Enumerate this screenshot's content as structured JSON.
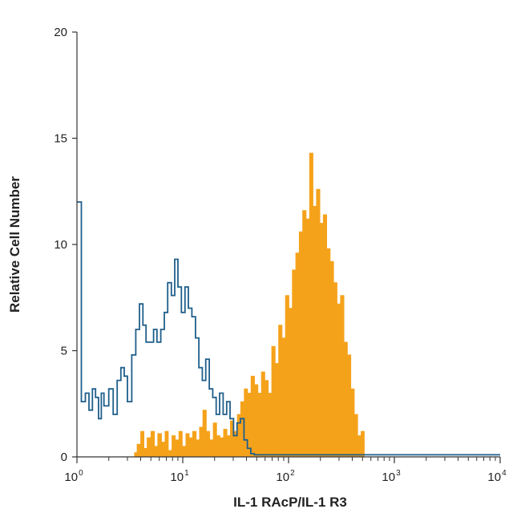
{
  "chart_data": {
    "type": "histogram",
    "title": "",
    "xlabel": "IL-1 RAcP/IL-1 R3",
    "ylabel": "Relative Cell Number",
    "xscale": "log",
    "xlim": [
      1,
      10000
    ],
    "ylim": [
      0,
      20
    ],
    "grid": false,
    "y_ticks": [
      0,
      5,
      10,
      15,
      20
    ],
    "x_ticks": [
      {
        "base": "10",
        "exp": "0"
      },
      {
        "base": "10",
        "exp": "1"
      },
      {
        "base": "10",
        "exp": "2"
      },
      {
        "base": "10",
        "exp": "3"
      },
      {
        "base": "10",
        "exp": "4"
      }
    ],
    "series": [
      {
        "style": "outline",
        "color": "#1f5f8b",
        "x": [
          1.0,
          1.1,
          1.2,
          1.3,
          1.4,
          1.5,
          1.6,
          1.7,
          1.8,
          2.0,
          2.2,
          2.4,
          2.6,
          2.8,
          3.0,
          3.3,
          3.6,
          3.9,
          4.2,
          4.5,
          4.9,
          5.3,
          5.7,
          6.2,
          6.7,
          7.2,
          7.8,
          8.4,
          9.0,
          9.7,
          10.5,
          11.3,
          12.2,
          13.2,
          14.2,
          15.3,
          16.5,
          17.8,
          19.2,
          20.7,
          22.3,
          24.1,
          26.0,
          28.0,
          30.2,
          32.6,
          35.1,
          37.9,
          40.8,
          44.0,
          47.5,
          60,
          100,
          500,
          1000,
          5000,
          10000
        ],
        "y": [
          12.0,
          2.6,
          3.0,
          2.2,
          3.2,
          2.8,
          1.8,
          3.0,
          2.4,
          3.2,
          2.0,
          3.6,
          4.2,
          3.8,
          2.6,
          4.8,
          6.0,
          7.2,
          6.2,
          5.4,
          5.4,
          6.0,
          5.4,
          6.0,
          6.8,
          8.2,
          7.6,
          9.3,
          8.0,
          6.8,
          8.0,
          7.0,
          6.6,
          5.6,
          4.2,
          3.6,
          4.6,
          3.2,
          2.8,
          2.0,
          3.0,
          2.0,
          2.6,
          1.8,
          1.0,
          1.6,
          1.8,
          0.8,
          0.4,
          0.15,
          0.1,
          0.1,
          0.1,
          0.1,
          0.1,
          0.1,
          0.1
        ]
      },
      {
        "style": "filled",
        "color": "#f5a21b",
        "x": [
          1.0,
          2.5,
          3.5,
          3.7,
          4.0,
          4.3,
          4.6,
          5.0,
          5.4,
          5.8,
          6.3,
          6.8,
          7.3,
          7.9,
          8.5,
          9.2,
          9.9,
          10.7,
          11.5,
          12.4,
          13.4,
          14.4,
          15.5,
          16.7,
          18.0,
          19.4,
          20.9,
          22.5,
          24.3,
          26.2,
          28.2,
          30.4,
          32.8,
          35.3,
          38.1,
          41.0,
          44.2,
          47.7,
          51.4,
          55.4,
          59.7,
          64.3,
          69.3,
          74.7,
          80.5,
          86.8,
          93.5,
          100.8,
          108.6,
          117.1,
          126.2,
          136.0,
          146.5,
          157.9,
          170.2,
          183.4,
          197.7,
          213.0,
          229.6,
          247.4,
          266.6,
          287.3,
          309.7,
          333.7,
          359.7,
          387.6,
          417.7,
          450.2,
          485.2,
          520,
          1000
        ],
        "y": [
          0.0,
          0.0,
          0.2,
          0.6,
          1.2,
          0.4,
          0.9,
          1.2,
          0.5,
          1.1,
          0.7,
          1.2,
          0.3,
          1.0,
          0.8,
          1.2,
          0.5,
          1.1,
          0.9,
          1.2,
          0.8,
          1.4,
          2.2,
          1.2,
          0.8,
          1.6,
          1.0,
          0.9,
          1.3,
          1.0,
          1.7,
          1.2,
          2.0,
          2.6,
          3.2,
          3.0,
          3.8,
          3.4,
          3.0,
          4.0,
          3.6,
          3.0,
          5.2,
          4.4,
          6.2,
          5.6,
          7.6,
          7.0,
          8.8,
          9.6,
          10.6,
          11.6,
          11.2,
          14.3,
          11.8,
          12.6,
          11.0,
          11.4,
          9.8,
          9.2,
          8.2,
          7.2,
          7.6,
          5.4,
          4.8,
          3.2,
          2.0,
          1.0,
          1.2,
          0.0,
          0.0
        ]
      }
    ]
  }
}
